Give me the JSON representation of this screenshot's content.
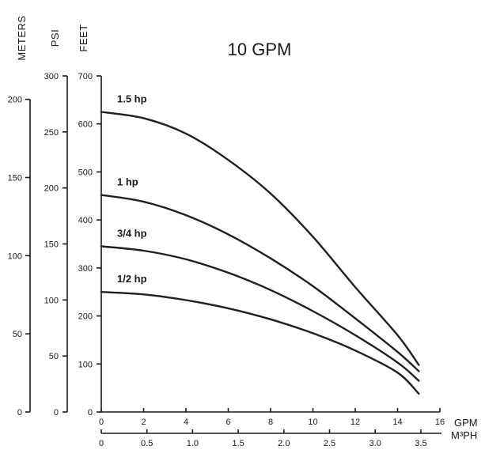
{
  "chart_data": {
    "type": "line",
    "title": "10 GPM",
    "x_axis": {
      "unit": "GPM",
      "range": [
        0,
        16
      ],
      "ticks": [
        "0",
        "2",
        "4",
        "6",
        "8",
        "10",
        "12",
        "14",
        "16"
      ]
    },
    "x_axis_secondary": {
      "unit": "M³PH",
      "range": [
        0,
        3.5
      ],
      "ticks": [
        "0",
        "0.5",
        "1.0",
        "1.5",
        "2.0",
        "2.5",
        "3.0",
        "3.5"
      ]
    },
    "y_axes": [
      {
        "label": "METERS",
        "range": [
          0,
          215
        ],
        "ticks": [
          "0",
          "50",
          "100",
          "150",
          "200"
        ]
      },
      {
        "label": "PSI",
        "range": [
          0,
          300
        ],
        "ticks": [
          "0",
          "50",
          "100",
          "150",
          "200",
          "250",
          "300"
        ]
      },
      {
        "label": "FEET",
        "range": [
          0,
          700
        ],
        "ticks": [
          "0",
          "100",
          "200",
          "300",
          "400",
          "500",
          "600",
          "700"
        ]
      }
    ],
    "grid": false,
    "series": [
      {
        "name": "1.5 hp",
        "x": [
          0,
          2,
          4,
          6,
          8,
          10,
          12,
          14,
          15
        ],
        "y": [
          625,
          612,
          580,
          525,
          455,
          365,
          260,
          160,
          98
        ]
      },
      {
        "name": "1 hp",
        "x": [
          0,
          2,
          4,
          6,
          8,
          10,
          12,
          14,
          15
        ],
        "y": [
          452,
          438,
          410,
          370,
          320,
          262,
          195,
          125,
          85
        ]
      },
      {
        "name": "3/4 hp",
        "x": [
          0,
          2,
          4,
          6,
          8,
          10,
          12,
          14,
          15
        ],
        "y": [
          345,
          336,
          318,
          290,
          254,
          210,
          160,
          103,
          65
        ]
      },
      {
        "name": "1/2 hp",
        "x": [
          0,
          2,
          4,
          6,
          8,
          10,
          12,
          14,
          15
        ],
        "y": [
          250,
          245,
          233,
          216,
          193,
          164,
          128,
          82,
          38
        ]
      }
    ]
  }
}
